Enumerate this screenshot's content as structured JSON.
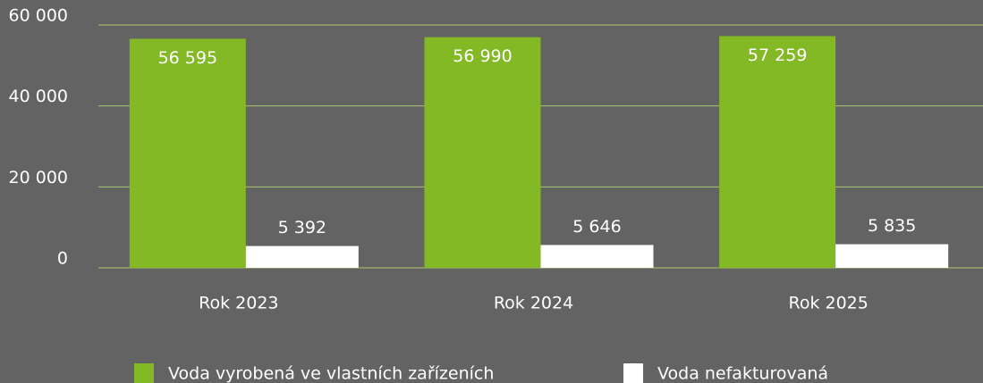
{
  "chart_data": {
    "type": "bar",
    "categories": [
      "Rok 2023",
      "Rok 2024",
      "Rok 2025"
    ],
    "series": [
      {
        "name": "Voda vyrobená ve vlastních zařízeních",
        "color": "#84b926",
        "values": [
          56595,
          56990,
          57259
        ],
        "value_labels": [
          "56 595",
          "56 990",
          "57 259"
        ]
      },
      {
        "name": "Voda nefakturovaná",
        "color": "#ffffff",
        "values": [
          5392,
          5646,
          5835
        ],
        "value_labels": [
          "5 392",
          "5 646",
          "5 835"
        ]
      }
    ],
    "ylim": [
      0,
      60000
    ],
    "yticks": [
      {
        "value": 0,
        "label": "0"
      },
      {
        "value": 20000,
        "label": "20 000"
      },
      {
        "value": 40000,
        "label": "40 000"
      },
      {
        "value": 60000,
        "label": "60 000"
      }
    ],
    "grid": true,
    "legend": "bottom"
  }
}
